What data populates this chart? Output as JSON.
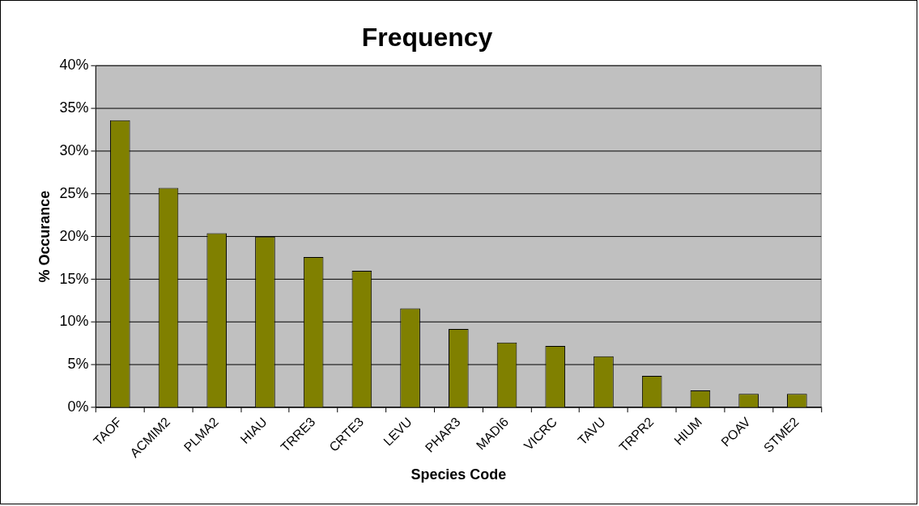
{
  "chart_data": {
    "type": "bar",
    "title": "Frequency",
    "xlabel": "Species Code",
    "ylabel": "% Occurance",
    "categories": [
      "TAOF",
      "ACMIM2",
      "PLMA2",
      "HIAU",
      "TRRE3",
      "CRTE3",
      "LEVU",
      "PHAR3",
      "MADI6",
      "VICRC",
      "TAVU",
      "TRPR2",
      "HIUM",
      "POAV",
      "STME2"
    ],
    "values": [
      33.6,
      25.7,
      20.4,
      20.0,
      17.6,
      16.0,
      11.6,
      9.2,
      7.6,
      7.2,
      6.0,
      3.7,
      2.0,
      1.6,
      1.6
    ],
    "color": "#808000",
    "ylim": [
      0,
      40
    ],
    "yticks": [
      {
        "value": 0,
        "label": "0%"
      },
      {
        "value": 5,
        "label": "5%"
      },
      {
        "value": 10,
        "label": "10%"
      },
      {
        "value": 15,
        "label": "15%"
      },
      {
        "value": 20,
        "label": "20%"
      },
      {
        "value": 25,
        "label": "25%"
      },
      {
        "value": 30,
        "label": "30%"
      },
      {
        "value": 35,
        "label": "35%"
      },
      {
        "value": 40,
        "label": "40%"
      }
    ],
    "grid": "y",
    "legend": false
  }
}
